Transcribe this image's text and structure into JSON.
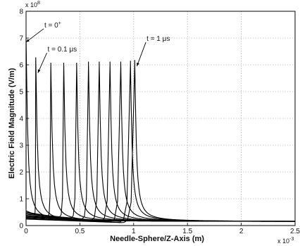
{
  "chart_data": {
    "type": "line",
    "title": "",
    "xlabel": "Needle-Sphere/Z-Axis (m)",
    "ylabel": "Electric Field Magnitude (V/m)",
    "x_scale_note": "x 10",
    "x_scale_exponent": "-3",
    "y_scale_note": "x 10",
    "y_scale_exponent": "8",
    "x_multiplier": 0.001,
    "y_multiplier": 100000000,
    "xlim": [
      0,
      2.5
    ],
    "ylim": [
      0,
      8
    ],
    "x_ticks": [
      0,
      0.5,
      1,
      1.5,
      2,
      2.5
    ],
    "x_tick_labels": [
      "0",
      "0.5",
      "1",
      "1.5",
      "2",
      "2.5"
    ],
    "y_ticks": [
      0,
      1,
      2,
      3,
      4,
      5,
      6,
      7,
      8
    ],
    "y_tick_labels": [
      "0",
      "1",
      "2",
      "3",
      "4",
      "5",
      "6",
      "7",
      "8"
    ],
    "grid": true,
    "legend": "none",
    "series_style": "black lines; each trace rises from a low background field to a sharp peak at the streamer front, then decays to about 0.15 x 10^8 V/m ahead of the front",
    "series": [
      {
        "front_position": 0.0,
        "peak": 7.0,
        "base": 0.62
      },
      {
        "front_position": 0.09,
        "peak": 6.28,
        "base": 0.55
      },
      {
        "front_position": 0.23,
        "peak": 6.08,
        "base": 0.5
      },
      {
        "front_position": 0.35,
        "peak": 6.08,
        "base": 0.46
      },
      {
        "front_position": 0.47,
        "peak": 6.08,
        "base": 0.42
      },
      {
        "front_position": 0.58,
        "peak": 6.12,
        "base": 0.38
      },
      {
        "front_position": 0.68,
        "peak": 6.12,
        "base": 0.35
      },
      {
        "front_position": 0.78,
        "peak": 6.12,
        "base": 0.32
      },
      {
        "front_position": 0.88,
        "peak": 6.12,
        "base": 0.29
      },
      {
        "front_position": 0.97,
        "peak": 6.15,
        "base": 0.26
      },
      {
        "front_position": 1.01,
        "peak": 6.18,
        "base": 0.24
      }
    ],
    "annotations": [
      {
        "text": "t = 0",
        "superscript": "+",
        "x": 0.17,
        "y": 7.4,
        "target_x": 0.0,
        "target_y": 6.85
      },
      {
        "text": "t = 0.1 μs",
        "x": 0.2,
        "y": 6.5,
        "target_x": 0.11,
        "target_y": 5.7
      },
      {
        "text": "t = 1 μs",
        "x": 1.12,
        "y": 6.9,
        "target_x": 1.03,
        "target_y": 5.95
      }
    ]
  }
}
